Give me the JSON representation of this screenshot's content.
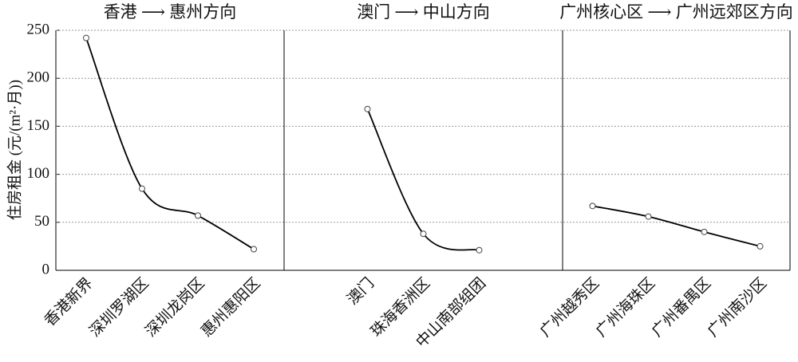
{
  "chart_data": [
    {
      "type": "line",
      "title": "香港 ⟶ 惠州方向",
      "ylabel": "住房租金 (元/(m²·月))",
      "categories": [
        "香港新界",
        "深圳罗湖区",
        "深圳龙岗区",
        "惠州惠阳区"
      ],
      "values": [
        242,
        85,
        57,
        22
      ],
      "color": "#000000",
      "ylim": [
        0,
        250
      ],
      "yticks": [
        0,
        50,
        100,
        150,
        200,
        250
      ],
      "grid": true
    },
    {
      "type": "line",
      "title": "澳门 ⟶ 中山方向",
      "categories": [
        "澳门",
        "珠海香洲区",
        "中山南部组团"
      ],
      "values": [
        168,
        38,
        21
      ],
      "color": "#000000",
      "ylim": [
        0,
        250
      ]
    },
    {
      "type": "line",
      "title": "广州核心区 ⟶ 广州远郊区方向",
      "categories": [
        "广州越秀区",
        "广州海珠区",
        "广州番禺区",
        "广州南沙区"
      ],
      "values": [
        67,
        56,
        40,
        25
      ],
      "color": "#000000",
      "ylim": [
        0,
        250
      ]
    }
  ]
}
